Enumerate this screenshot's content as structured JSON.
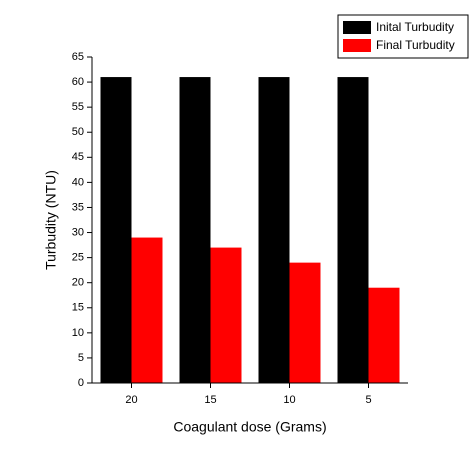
{
  "chart_data": {
    "type": "bar",
    "categories": [
      "20",
      "15",
      "10",
      "5"
    ],
    "series": [
      {
        "name": "Inital Turbudity",
        "color": "#000000",
        "values": [
          61,
          61,
          61,
          61
        ]
      },
      {
        "name": "Final Turbudity",
        "color": "#ff0000",
        "values": [
          29,
          27,
          24,
          19
        ]
      }
    ],
    "x_label": "Coagulant dose (Grams)",
    "y_label": "Turbudity (NTU)",
    "ylim": [
      0,
      65
    ],
    "yticks": [
      0,
      5,
      10,
      15,
      20,
      25,
      30,
      35,
      40,
      45,
      50,
      55,
      60,
      65
    ],
    "legend": "top-right"
  }
}
